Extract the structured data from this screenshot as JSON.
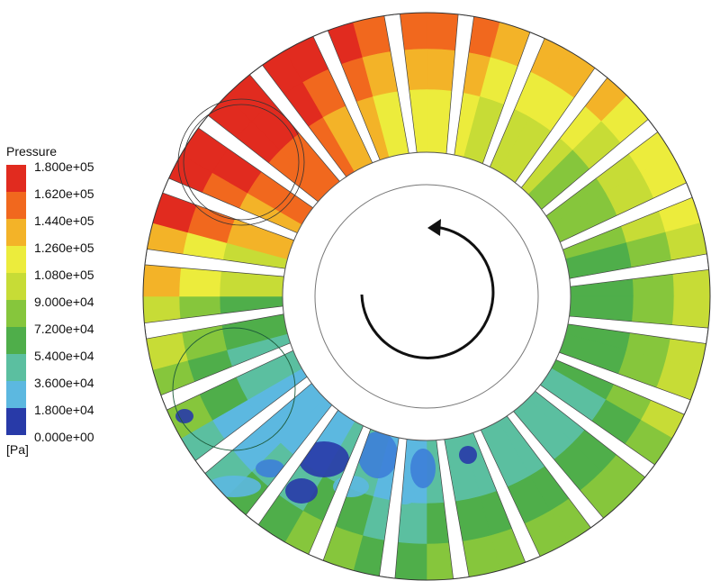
{
  "legend": {
    "title": "Pressure",
    "unit": "[Pa]",
    "labels": [
      "1.800e+05",
      "1.620e+05",
      "1.440e+05",
      "1.260e+05",
      "1.080e+05",
      "9.000e+04",
      "7.200e+04",
      "5.400e+04",
      "3.600e+04",
      "1.800e+04",
      "0.000e+00"
    ],
    "colors": [
      "#e12b1f",
      "#f1681e",
      "#f3b328",
      "#ecec3c",
      "#c7dc36",
      "#86c63c",
      "#4fae4a",
      "#5bbfa0",
      "#5cb8e0",
      "#3d7fd8",
      "#283aa8"
    ]
  },
  "diagram": {
    "rotation_direction": "counter-clockwise",
    "blade_count": 24
  }
}
